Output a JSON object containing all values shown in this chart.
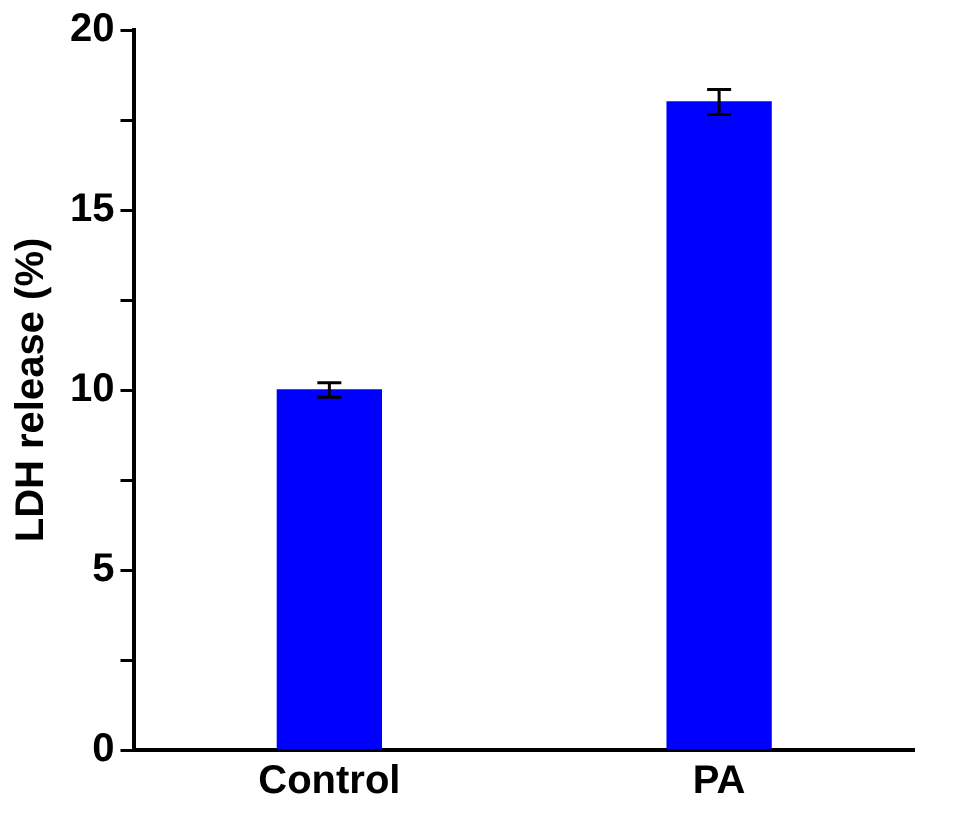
{
  "chart_data": {
    "type": "bar",
    "ylabel": "LDH release (%)",
    "categories": [
      "Control",
      "PA"
    ],
    "values": [
      10.0,
      18.0
    ],
    "errors": [
      0.2,
      0.35
    ],
    "color": "#0000ff",
    "ylim": [
      0,
      20
    ],
    "yticks": [
      0,
      {
        "value": 2.5,
        "label": null
      },
      5,
      {
        "value": 7.5,
        "label": null
      },
      10,
      {
        "value": 12.5,
        "label": null
      },
      15,
      {
        "value": 17.5,
        "label": null
      },
      20
    ],
    "grid": false,
    "legend": false
  }
}
